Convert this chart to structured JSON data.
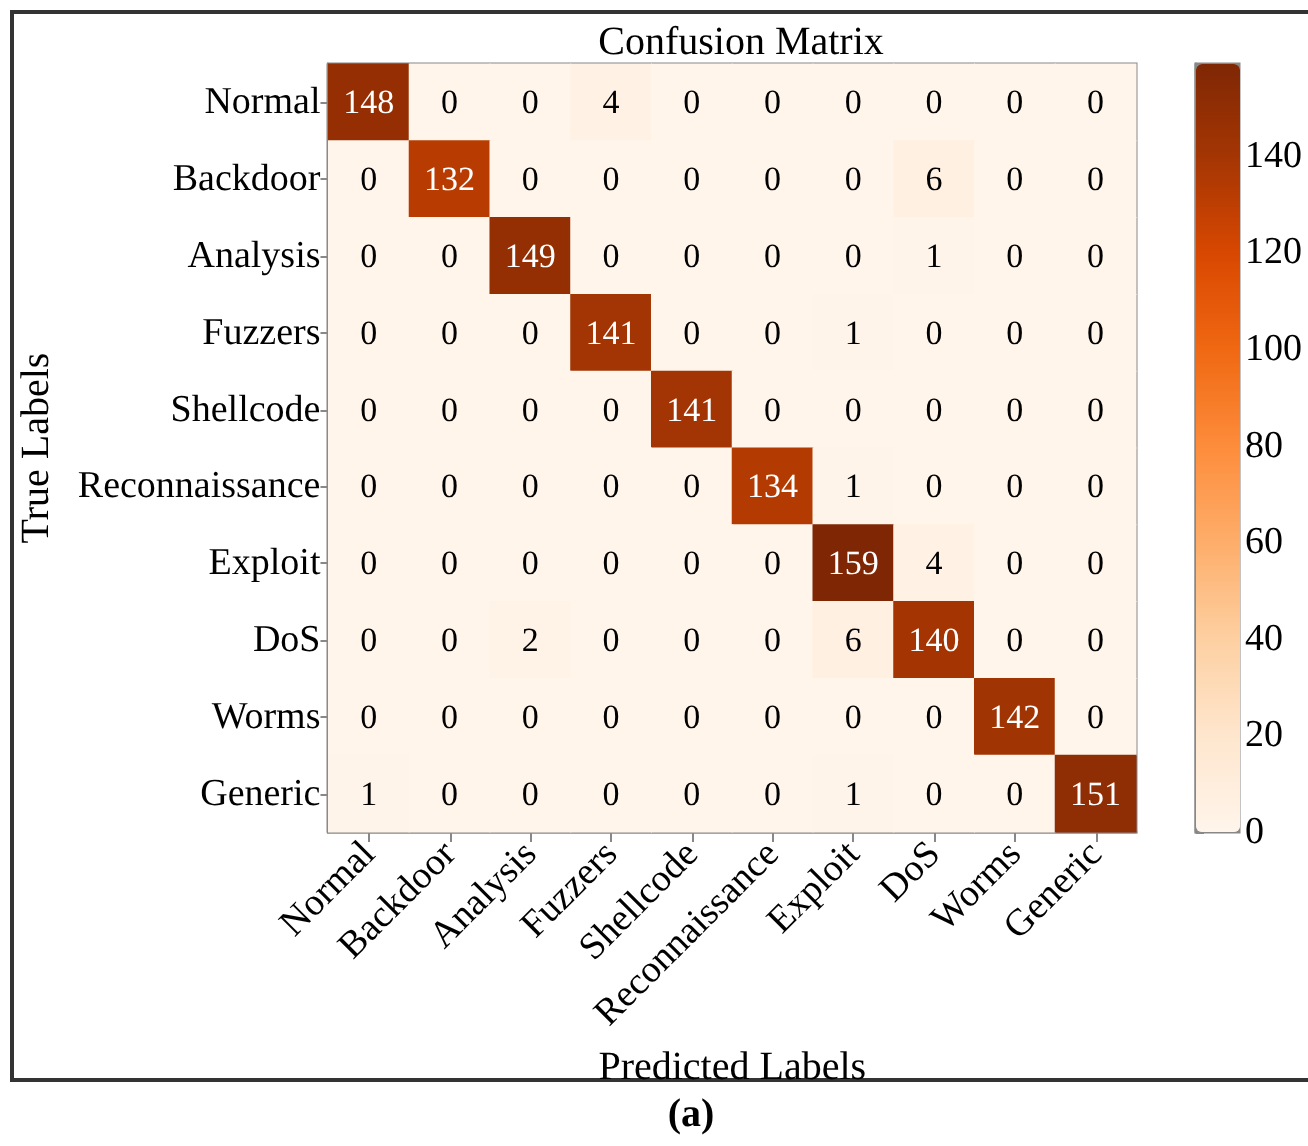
{
  "chart_data": {
    "type": "heatmap",
    "title": "Confusion Matrix",
    "xlabel": "Predicted Labels",
    "ylabel": "True Labels",
    "categories": [
      "Normal",
      "Backdoor",
      "Analysis",
      "Fuzzers",
      "Shellcode",
      "Reconnaissance",
      "Exploit",
      "DoS",
      "Worms",
      "Generic"
    ],
    "y_categories": [
      "Normal",
      "Backdoor",
      "Analysis",
      "Fuzzers",
      "Shellcode",
      "Reconnaissance",
      "Exploit",
      "DoS",
      "Worms",
      "Generic"
    ],
    "cells": [
      [
        148,
        0,
        0,
        4,
        0,
        0,
        0,
        0,
        0,
        0
      ],
      [
        0,
        132,
        0,
        0,
        0,
        0,
        0,
        6,
        0,
        0
      ],
      [
        0,
        0,
        149,
        0,
        0,
        0,
        0,
        1,
        0,
        0
      ],
      [
        0,
        0,
        0,
        141,
        0,
        0,
        1,
        0,
        0,
        0
      ],
      [
        0,
        0,
        0,
        0,
        141,
        0,
        0,
        0,
        0,
        0
      ],
      [
        0,
        0,
        0,
        0,
        0,
        134,
        1,
        0,
        0,
        0
      ],
      [
        0,
        0,
        0,
        0,
        0,
        0,
        159,
        4,
        0,
        0
      ],
      [
        0,
        0,
        2,
        0,
        0,
        0,
        6,
        140,
        0,
        0
      ],
      [
        0,
        0,
        0,
        0,
        0,
        0,
        0,
        0,
        142,
        0
      ],
      [
        1,
        0,
        0,
        0,
        0,
        0,
        1,
        0,
        0,
        151
      ]
    ],
    "clim": [
      0,
      159
    ],
    "cticks": [
      0,
      20,
      40,
      60,
      80,
      100,
      120,
      140
    ],
    "data_labels": true,
    "annotations": [
      "(a)"
    ]
  }
}
